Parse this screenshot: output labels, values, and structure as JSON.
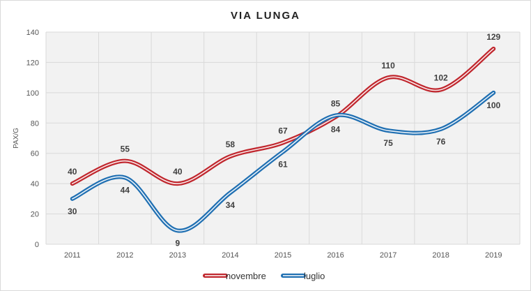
{
  "chart_data": {
    "type": "line",
    "title": "VIA LUNGA",
    "xlabel": "",
    "ylabel": "PAX/G",
    "categories": [
      "2011",
      "2012",
      "2013",
      "2014",
      "2015",
      "2016",
      "2017",
      "2018",
      "2019"
    ],
    "ylim": [
      0,
      140
    ],
    "yticks": [
      0,
      20,
      40,
      60,
      80,
      100,
      120,
      140
    ],
    "grid": true,
    "legend": "bottom",
    "series": [
      {
        "name": "novembre",
        "color": "#c0262d",
        "values": [
          40,
          55,
          40,
          58,
          67,
          84,
          110,
          102,
          129
        ]
      },
      {
        "name": "luglio",
        "color": "#1f6fb2",
        "values": [
          30,
          44,
          9,
          34,
          61,
          85,
          75,
          76,
          100
        ]
      }
    ]
  }
}
